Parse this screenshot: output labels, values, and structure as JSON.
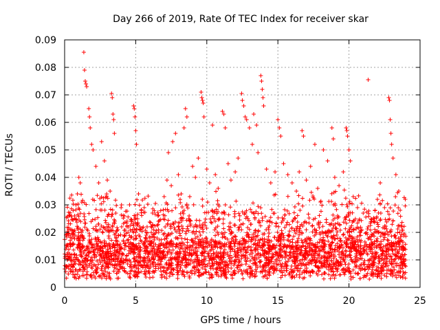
{
  "chart_data": {
    "type": "scatter",
    "title": "Day 266 of 2019, Rate Of TEC Index for receiver skar",
    "xlabel": "GPS time / hours",
    "ylabel": "ROTI / TECUs",
    "xlim": [
      0,
      25
    ],
    "ylim": [
      0,
      0.09
    ],
    "xticks": [
      0,
      5,
      10,
      15,
      20,
      25
    ],
    "yticks": [
      0,
      0.01,
      0.02,
      0.03,
      0.04,
      0.05,
      0.06,
      0.07,
      0.08,
      0.09
    ],
    "xtick_labels": [
      "0",
      "5",
      "10",
      "15",
      "20",
      "25"
    ],
    "ytick_labels": [
      "0",
      "0.01",
      "0.02",
      "0.03",
      "0.04",
      "0.05",
      "0.06",
      "0.07",
      "0.08",
      "0.09"
    ],
    "grid": true,
    "marker": "plus",
    "color": "#ff0000",
    "series": [
      {
        "name": "ROTI",
        "points": [
          [
            1.35,
            0.0855
          ],
          [
            1.4,
            0.079
          ],
          [
            1.45,
            0.075
          ],
          [
            1.5,
            0.074
          ],
          [
            1.55,
            0.073
          ],
          [
            1.7,
            0.065
          ],
          [
            1.75,
            0.062
          ],
          [
            1.8,
            0.058
          ],
          [
            1.9,
            0.052
          ],
          [
            2.0,
            0.05
          ],
          [
            3.3,
            0.0705
          ],
          [
            3.35,
            0.069
          ],
          [
            3.4,
            0.063
          ],
          [
            3.45,
            0.061
          ],
          [
            3.5,
            0.056
          ],
          [
            4.85,
            0.066
          ],
          [
            4.9,
            0.065
          ],
          [
            4.95,
            0.062
          ],
          [
            5.0,
            0.057
          ],
          [
            5.05,
            0.052
          ],
          [
            7.3,
            0.049
          ],
          [
            7.6,
            0.053
          ],
          [
            7.8,
            0.056
          ],
          [
            8.4,
            0.058
          ],
          [
            8.5,
            0.065
          ],
          [
            8.6,
            0.062
          ],
          [
            9.6,
            0.071
          ],
          [
            9.65,
            0.069
          ],
          [
            9.7,
            0.068
          ],
          [
            9.75,
            0.067
          ],
          [
            9.8,
            0.062
          ],
          [
            10.4,
            0.059
          ],
          [
            11.1,
            0.064
          ],
          [
            11.2,
            0.063
          ],
          [
            11.3,
            0.058
          ],
          [
            12.45,
            0.0705
          ],
          [
            12.5,
            0.068
          ],
          [
            12.6,
            0.066
          ],
          [
            12.7,
            0.062
          ],
          [
            12.8,
            0.061
          ],
          [
            13.0,
            0.058
          ],
          [
            13.3,
            0.063
          ],
          [
            13.5,
            0.059
          ],
          [
            13.8,
            0.077
          ],
          [
            13.85,
            0.075
          ],
          [
            13.9,
            0.072
          ],
          [
            13.95,
            0.069
          ],
          [
            14.0,
            0.066
          ],
          [
            15.0,
            0.061
          ],
          [
            15.1,
            0.058
          ],
          [
            15.2,
            0.055
          ],
          [
            16.7,
            0.057
          ],
          [
            16.8,
            0.055
          ],
          [
            17.6,
            0.052
          ],
          [
            18.2,
            0.05
          ],
          [
            18.8,
            0.058
          ],
          [
            18.9,
            0.054
          ],
          [
            19.8,
            0.058
          ],
          [
            19.85,
            0.057
          ],
          [
            19.9,
            0.055
          ],
          [
            20.0,
            0.05
          ],
          [
            20.1,
            0.046
          ],
          [
            21.35,
            0.0755
          ],
          [
            22.8,
            0.069
          ],
          [
            22.85,
            0.068
          ],
          [
            22.9,
            0.061
          ],
          [
            22.95,
            0.056
          ],
          [
            23.0,
            0.052
          ],
          [
            23.1,
            0.047
          ],
          [
            0.2,
            0.012
          ],
          [
            0.3,
            0.008
          ],
          [
            0.4,
            0.016
          ],
          [
            0.5,
            0.021
          ],
          [
            0.6,
            0.01
          ],
          [
            0.7,
            0.026
          ],
          [
            0.8,
            0.03
          ],
          [
            0.9,
            0.034
          ],
          [
            1.0,
            0.04
          ],
          [
            1.1,
            0.038
          ],
          [
            1.2,
            0.031
          ],
          [
            1.3,
            0.018
          ],
          [
            2.2,
            0.044
          ],
          [
            2.4,
            0.038
          ],
          [
            2.6,
            0.053
          ],
          [
            2.8,
            0.046
          ],
          [
            3.0,
            0.039
          ],
          [
            3.2,
            0.035
          ],
          [
            3.6,
            0.027
          ],
          [
            3.8,
            0.019
          ],
          [
            4.0,
            0.03
          ],
          [
            4.2,
            0.026
          ],
          [
            4.5,
            0.022
          ],
          [
            5.2,
            0.034
          ],
          [
            5.4,
            0.028
          ],
          [
            5.6,
            0.029
          ],
          [
            5.8,
            0.022
          ],
          [
            6.0,
            0.018
          ],
          [
            6.3,
            0.014
          ],
          [
            6.6,
            0.021
          ],
          [
            7.0,
            0.033
          ],
          [
            7.2,
            0.039
          ],
          [
            7.5,
            0.037
          ],
          [
            8.0,
            0.041
          ],
          [
            8.2,
            0.034
          ],
          [
            8.8,
            0.033
          ],
          [
            9.0,
            0.044
          ],
          [
            9.2,
            0.04
          ],
          [
            9.4,
            0.047
          ],
          [
            10.0,
            0.043
          ],
          [
            10.2,
            0.038
          ],
          [
            10.6,
            0.041
          ],
          [
            10.8,
            0.036
          ],
          [
            11.5,
            0.045
          ],
          [
            11.7,
            0.039
          ],
          [
            12.0,
            0.042
          ],
          [
            12.2,
            0.047
          ],
          [
            13.2,
            0.052
          ],
          [
            13.6,
            0.049
          ],
          [
            14.2,
            0.043
          ],
          [
            14.5,
            0.038
          ],
          [
            14.8,
            0.042
          ],
          [
            15.4,
            0.045
          ],
          [
            15.7,
            0.041
          ],
          [
            16.0,
            0.038
          ],
          [
            16.3,
            0.035
          ],
          [
            16.5,
            0.042
          ],
          [
            17.0,
            0.039
          ],
          [
            17.3,
            0.044
          ],
          [
            17.8,
            0.036
          ],
          [
            18.0,
            0.031
          ],
          [
            18.5,
            0.046
          ],
          [
            19.0,
            0.04
          ],
          [
            19.3,
            0.037
          ],
          [
            19.6,
            0.042
          ],
          [
            20.3,
            0.033
          ],
          [
            20.6,
            0.029
          ],
          [
            21.0,
            0.027
          ],
          [
            21.6,
            0.024
          ],
          [
            22.0,
            0.032
          ],
          [
            22.2,
            0.038
          ],
          [
            22.5,
            0.029
          ],
          [
            23.3,
            0.041
          ],
          [
            23.5,
            0.035
          ],
          [
            23.7,
            0.022
          ],
          [
            23.9,
            0.014
          ]
        ]
      }
    ]
  }
}
